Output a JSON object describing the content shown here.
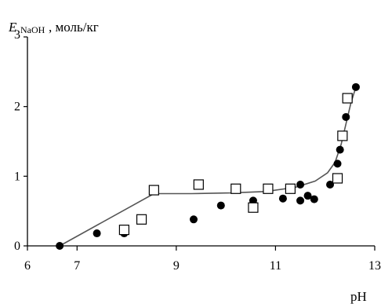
{
  "chart_data": {
    "type": "scatter",
    "ylabel_symbol": "E",
    "ylabel_subscript": "NaOH",
    "ylabel_units": ", моль/кг",
    "xlabel": "pH",
    "xlim": [
      6,
      13
    ],
    "ylim": [
      0,
      3
    ],
    "x_ticks": [
      6,
      7,
      9,
      11,
      13
    ],
    "x_tick_labels": [
      "6",
      "7",
      "9",
      "11",
      "13"
    ],
    "y_ticks": [
      0,
      1,
      2,
      3
    ],
    "y_tick_labels": [
      "0",
      "1",
      "2",
      "3"
    ],
    "grid": false,
    "series": [
      {
        "marker": "filled-circle",
        "color": "#000000",
        "points": [
          [
            6.65,
            0.0
          ],
          [
            7.4,
            0.18
          ],
          [
            7.95,
            0.18
          ],
          [
            9.35,
            0.38
          ],
          [
            9.9,
            0.58
          ],
          [
            10.55,
            0.65
          ],
          [
            11.15,
            0.68
          ],
          [
            11.5,
            0.88
          ],
          [
            11.5,
            0.65
          ],
          [
            11.65,
            0.72
          ],
          [
            11.78,
            0.67
          ],
          [
            12.1,
            0.88
          ],
          [
            12.25,
            1.18
          ],
          [
            12.3,
            1.38
          ],
          [
            12.42,
            1.85
          ],
          [
            12.62,
            2.28
          ]
        ]
      },
      {
        "marker": "open-square",
        "color": "#000000",
        "points": [
          [
            7.95,
            0.23
          ],
          [
            8.3,
            0.38
          ],
          [
            8.55,
            0.8
          ],
          [
            9.45,
            0.88
          ],
          [
            10.2,
            0.82
          ],
          [
            10.55,
            0.55
          ],
          [
            10.85,
            0.82
          ],
          [
            11.3,
            0.82
          ],
          [
            12.25,
            0.97
          ],
          [
            12.35,
            1.58
          ],
          [
            12.45,
            2.12
          ]
        ]
      },
      {
        "type": "line",
        "color": "#555555",
        "points": [
          [
            6.65,
            0.0
          ],
          [
            8.55,
            0.75
          ],
          [
            9.3,
            0.75
          ],
          [
            10.1,
            0.76
          ],
          [
            10.8,
            0.78
          ],
          [
            11.4,
            0.84
          ],
          [
            11.8,
            0.93
          ],
          [
            12.05,
            1.05
          ],
          [
            12.2,
            1.2
          ],
          [
            12.32,
            1.45
          ],
          [
            12.42,
            1.75
          ],
          [
            12.52,
            2.05
          ],
          [
            12.62,
            2.28
          ]
        ]
      }
    ]
  }
}
